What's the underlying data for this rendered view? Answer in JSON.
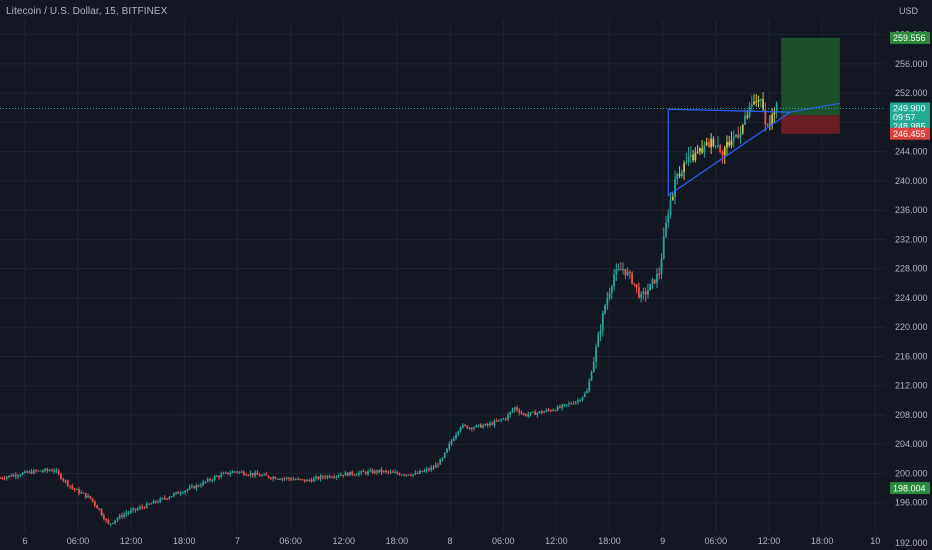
{
  "header": {
    "symbol_title": "Litecoin / U.S. Dollar, 15, BITFINEX",
    "currency": "USD"
  },
  "colors": {
    "background": "#131722",
    "grid": "#1f2433",
    "axis_text": "#b2b5be",
    "candle_up": "#26a69a",
    "candle_down": "#ef5350",
    "candle_alt": "#c8c34a",
    "triangle_line": "#2962ff",
    "last_price_line": "#26a69a",
    "target_zone": "#1e5a2e",
    "stop_zone": "#7a1f24",
    "badge_target": "#2b8a3e",
    "badge_stop": "#e0403b",
    "badge_price": "#22ab94",
    "badge_grey": "#3b4251"
  },
  "chart_data": {
    "type": "candlestick",
    "ylim": [
      192,
      262
    ],
    "y_ticks": [
      "196.000",
      "200.000",
      "204.000",
      "208.000",
      "212.000",
      "216.000",
      "220.000",
      "224.000",
      "228.000",
      "232.000",
      "236.000",
      "240.000",
      "244.000",
      "248.000",
      "252.000",
      "256.000",
      "260.000"
    ],
    "x_ticks": [
      "6",
      "06:00",
      "12:00",
      "18:00",
      "7",
      "06:00",
      "12:00",
      "18:00",
      "8",
      "06:00",
      "12:00",
      "18:00",
      "9",
      "06:00",
      "12:00",
      "18:00",
      "10"
    ],
    "last_price": 249.9,
    "countdown": "09:57",
    "price_labels": {
      "target": "259.556",
      "last": "249.900",
      "countdown": "09:57",
      "mid": "248.985",
      "stop": "246.455",
      "low": "198.004",
      "bottom_partial": "192.000"
    },
    "price_path": [
      [
        0,
        199.4
      ],
      [
        4,
        199.9
      ],
      [
        8,
        200.3
      ],
      [
        12,
        200.5
      ],
      [
        14,
        199.2
      ],
      [
        16,
        198.0
      ],
      [
        20,
        196.6
      ],
      [
        22,
        195.0
      ],
      [
        24,
        193.0
      ],
      [
        26,
        193.9
      ],
      [
        28,
        194.6
      ],
      [
        32,
        195.5
      ],
      [
        36,
        196.5
      ],
      [
        40,
        197.5
      ],
      [
        44,
        198.4
      ],
      [
        48,
        199.6
      ],
      [
        52,
        200.3
      ],
      [
        56,
        199.9
      ],
      [
        60,
        199.5
      ],
      [
        64,
        199.3
      ],
      [
        68,
        199.0
      ],
      [
        72,
        199.6
      ],
      [
        76,
        199.9
      ],
      [
        80,
        200.1
      ],
      [
        84,
        200.3
      ],
      [
        88,
        200.0
      ],
      [
        92,
        199.9
      ],
      [
        96,
        200.8
      ],
      [
        98,
        202.0
      ],
      [
        100,
        204.5
      ],
      [
        102,
        206.5
      ],
      [
        104,
        206.3
      ],
      [
        108,
        206.6
      ],
      [
        112,
        207.6
      ],
      [
        114,
        209.0
      ],
      [
        116,
        208.0
      ],
      [
        120,
        208.4
      ],
      [
        124,
        209.0
      ],
      [
        128,
        210.0
      ],
      [
        130,
        211.2
      ],
      [
        132,
        217.0
      ],
      [
        134,
        223.0
      ],
      [
        136,
        227.2
      ],
      [
        138,
        228.0
      ],
      [
        140,
        226.5
      ],
      [
        142,
        224.0
      ],
      [
        144,
        225.5
      ],
      [
        146,
        227.5
      ],
      [
        148,
        236.0
      ],
      [
        150,
        241.0
      ],
      [
        152,
        242.5
      ],
      [
        154,
        243.5
      ],
      [
        156,
        244.5
      ],
      [
        158,
        245.5
      ],
      [
        160,
        244.2
      ],
      [
        162,
        245.6
      ],
      [
        164,
        247.0
      ],
      [
        166,
        249.5
      ],
      [
        168,
        251.5
      ],
      [
        170,
        247.5
      ],
      [
        172,
        249.9
      ]
    ],
    "triangle": {
      "start_x": 148,
      "top_y": 249.8,
      "bottom_y": 238.0,
      "apex_x": 175,
      "apex_y": 249.4
    },
    "position": {
      "entry": 248.985,
      "target": 259.556,
      "stop": 246.455,
      "from_x": 173,
      "to_x": 186
    },
    "x_range": [
      0,
      196
    ],
    "grid": true
  }
}
